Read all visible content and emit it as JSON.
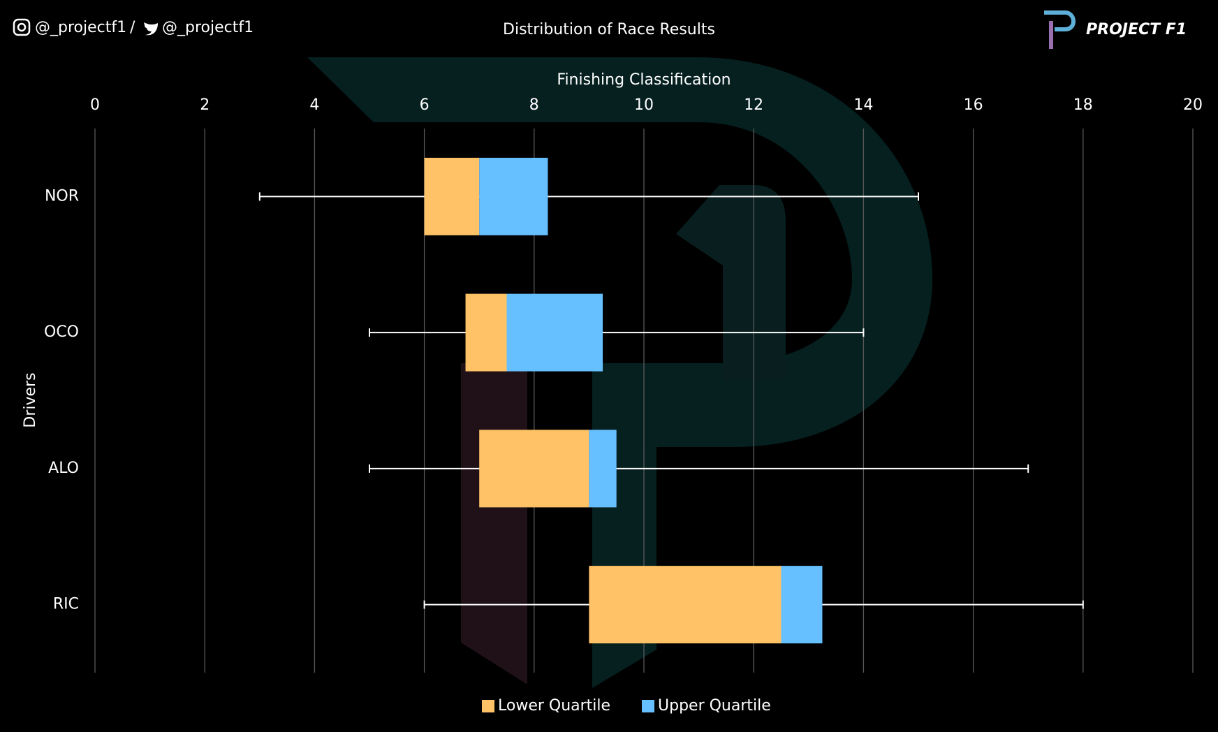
{
  "header": {
    "instagram": "@_projectf1",
    "separator": "/",
    "twitter": "@_projectf1",
    "logo": "PROJECT F1"
  },
  "chart_data": {
    "type": "box",
    "title": "Distribution of Race Results",
    "x_label": "Finishing Classification",
    "y_label": "Drivers",
    "categories": [
      "NOR",
      "OCO",
      "ALO",
      "RIC"
    ],
    "min": [
      3,
      5,
      5,
      6
    ],
    "q1": [
      6,
      6.75,
      7,
      9
    ],
    "median": [
      7,
      7.5,
      9,
      12.5
    ],
    "q3": [
      8.25,
      9.25,
      9.5,
      13.25
    ],
    "max": [
      15,
      14,
      17,
      18
    ],
    "series": [
      {
        "name": "Lower Quartile",
        "color": "#ffc266"
      },
      {
        "name": "Upper Quartile",
        "color": "#66bfff"
      }
    ],
    "xlim": [
      0,
      20
    ],
    "xticks": [
      0,
      2,
      4,
      6,
      8,
      10,
      12,
      14,
      16,
      18,
      20
    ],
    "grid": true,
    "legend": "bottom"
  }
}
